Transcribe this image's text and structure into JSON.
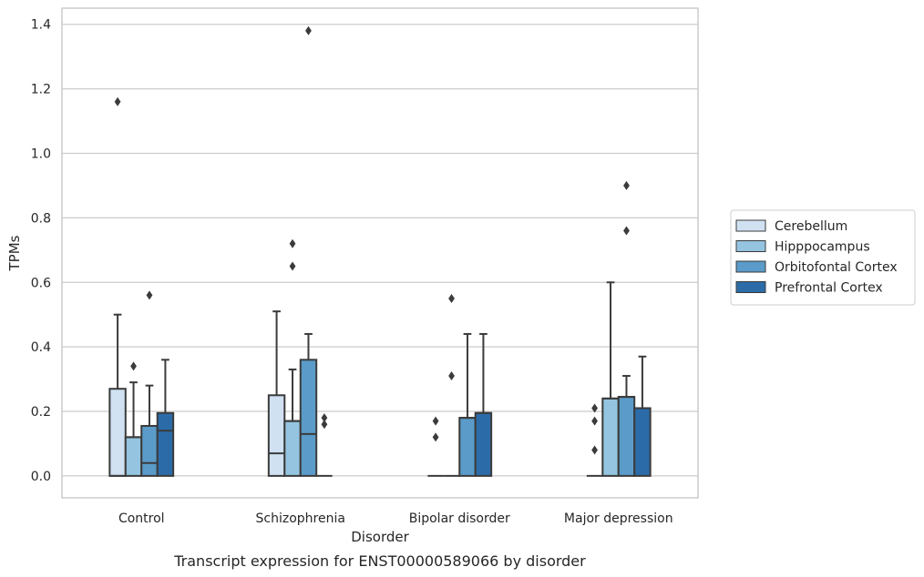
{
  "chart_data": {
    "type": "box",
    "caption": "Transcript expression for ENST00000589066 by disorder",
    "xlabel": "Disorder",
    "ylabel": "TPMs",
    "ylim": [
      -0.068,
      1.45
    ],
    "yticks": [
      "0.0",
      "0.2",
      "0.4",
      "0.6",
      "0.8",
      "1.0",
      "1.2",
      "1.4"
    ],
    "grid": "horizontal",
    "legend_position": "right",
    "categories": [
      "Control",
      "Schizophrenia",
      "Bipolar disorder",
      "Major depression"
    ],
    "series": [
      {
        "name": "Cerebellum",
        "color": "#d0e1f2",
        "boxes": [
          {
            "q1": 0,
            "median": 0,
            "q3": 0.27,
            "whisker_low": 0,
            "whisker_high": 0.5,
            "outliers": [
              1.16
            ]
          },
          {
            "q1": 0,
            "median": 0.07,
            "q3": 0.25,
            "whisker_low": 0,
            "whisker_high": 0.51,
            "outliers": []
          },
          {
            "q1": 0,
            "median": 0,
            "q3": 0,
            "whisker_low": 0,
            "whisker_high": 0,
            "outliers": [
              0.12,
              0.17
            ]
          },
          {
            "q1": 0,
            "median": 0,
            "q3": 0,
            "whisker_low": 0,
            "whisker_high": 0,
            "outliers": [
              0.08,
              0.17,
              0.21
            ]
          }
        ]
      },
      {
        "name": "Hipppocampus",
        "color": "#94c4df",
        "boxes": [
          {
            "q1": 0,
            "median": 0.12,
            "q3": 0.12,
            "whisker_low": 0,
            "whisker_high": 0.29,
            "outliers": [
              0.34
            ]
          },
          {
            "q1": 0,
            "median": 0.17,
            "q3": 0.17,
            "whisker_low": 0,
            "whisker_high": 0.33,
            "outliers": [
              0.65,
              0.72
            ]
          },
          {
            "q1": 0,
            "median": 0,
            "q3": 0,
            "whisker_low": 0,
            "whisker_high": 0,
            "outliers": [
              0.31,
              0.55
            ]
          },
          {
            "q1": 0,
            "median": 0.24,
            "q3": 0.24,
            "whisker_low": 0,
            "whisker_high": 0.6,
            "outliers": []
          }
        ]
      },
      {
        "name": "Orbitofontal Cortex",
        "color": "#5a9bc9",
        "boxes": [
          {
            "q1": 0,
            "median": 0.04,
            "q3": 0.155,
            "whisker_low": 0,
            "whisker_high": 0.28,
            "outliers": [
              0.56
            ]
          },
          {
            "q1": 0,
            "median": 0.13,
            "q3": 0.36,
            "whisker_low": 0,
            "whisker_high": 0.44,
            "outliers": [
              1.38
            ]
          },
          {
            "q1": 0,
            "median": 0.18,
            "q3": 0.18,
            "whisker_low": 0,
            "whisker_high": 0.44,
            "outliers": []
          },
          {
            "q1": 0,
            "median": 0.245,
            "q3": 0.245,
            "whisker_low": 0,
            "whisker_high": 0.31,
            "outliers": [
              0.76,
              0.9
            ]
          }
        ]
      },
      {
        "name": "Prefrontal Cortex",
        "color": "#2b6ca8",
        "boxes": [
          {
            "q1": 0,
            "median": 0.14,
            "q3": 0.195,
            "whisker_low": 0,
            "whisker_high": 0.36,
            "outliers": []
          },
          {
            "q1": 0,
            "median": 0,
            "q3": 0,
            "whisker_low": 0,
            "whisker_high": 0,
            "outliers": [
              0.16,
              0.18
            ]
          },
          {
            "q1": 0,
            "median": 0.195,
            "q3": 0.195,
            "whisker_low": 0,
            "whisker_high": 0.44,
            "outliers": []
          },
          {
            "q1": 0,
            "median": 0.21,
            "q3": 0.21,
            "whisker_low": 0,
            "whisker_high": 0.37,
            "outliers": []
          }
        ]
      }
    ]
  }
}
